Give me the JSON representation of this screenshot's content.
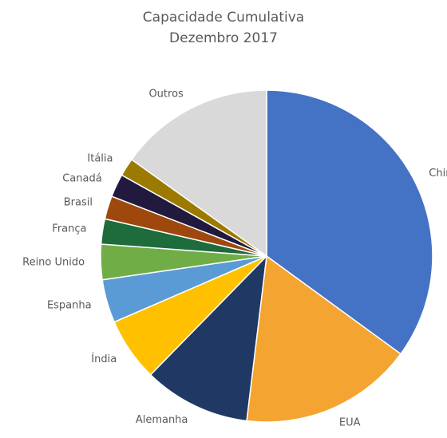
{
  "chart_data": {
    "type": "pie",
    "title": [
      "Capacidade Cumulativa",
      "Dezembro 2017"
    ],
    "slices": [
      {
        "label": "China",
        "value": 35.7,
        "color": "#4472C4"
      },
      {
        "label": "EUA",
        "value": 17.2,
        "color": "#F4A431"
      },
      {
        "label": "Alemanha",
        "value": 10.6,
        "color": "#203864"
      },
      {
        "label": "Índia",
        "value": 6.3,
        "color": "#FFC000"
      },
      {
        "label": "Espanha",
        "value": 4.3,
        "color": "#5B9BD5"
      },
      {
        "label": "Reino Unido",
        "value": 3.5,
        "color": "#70AD47"
      },
      {
        "label": "França",
        "value": 2.5,
        "color": "#1E6B3C"
      },
      {
        "label": "Brasil",
        "value": 2.3,
        "color": "#9E480E"
      },
      {
        "label": "Canadá",
        "value": 2.3,
        "color": "#211A3E"
      },
      {
        "label": "Itália",
        "value": 1.8,
        "color": "#9C7A00"
      },
      {
        "label": "Outros",
        "value": 15.4,
        "color": "#D9D9D9"
      }
    ],
    "start_angle": "12 o'clock",
    "direction": "clockwise",
    "legend": "none"
  }
}
